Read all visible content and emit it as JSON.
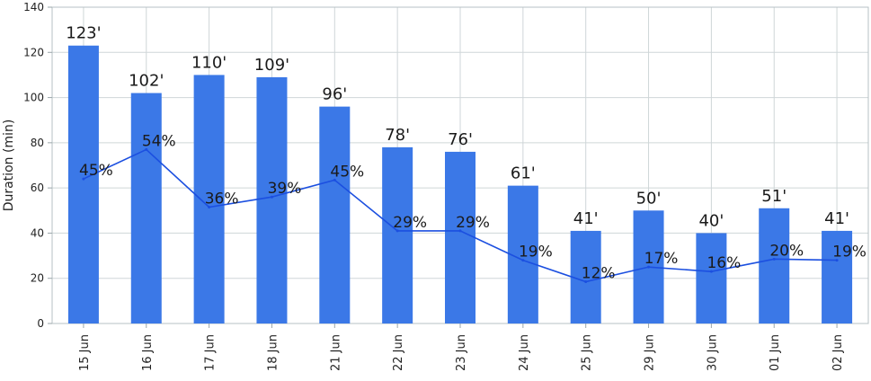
{
  "chart_data": {
    "type": "bar",
    "categories": [
      "15 Jun",
      "16 Jun",
      "17 Jun",
      "18 Jun",
      "21 Jun",
      "22 Jun",
      "23 Jun",
      "24 Jun",
      "25 Jun",
      "29 Jun",
      "30 Jun",
      "01 Jun",
      "02 Jun"
    ],
    "series": [
      {
        "type": "bar",
        "values": [
          123,
          102,
          110,
          109,
          96,
          78,
          76,
          61,
          41,
          50,
          40,
          51,
          41
        ],
        "labels": [
          "123'",
          "102'",
          "110'",
          "109'",
          "96'",
          "78'",
          "76'",
          "61'",
          "41'",
          "50'",
          "40'",
          "51'",
          "41'"
        ],
        "color": "#3b78e7"
      },
      {
        "type": "line",
        "values": [
          64,
          77,
          51.5,
          56,
          63.5,
          41,
          41,
          28,
          18.5,
          25,
          23,
          28.5,
          28
        ],
        "labels": [
          "45%",
          "54%",
          "36%",
          "39%",
          "45%",
          "29%",
          "29%",
          "19%",
          "12%",
          "17%",
          "16%",
          "20%",
          "19%"
        ],
        "color": "#1b4fe0"
      }
    ],
    "title": "",
    "xlabel": "",
    "ylabel": "Duration (min)",
    "ylim": [
      0,
      140
    ],
    "yticks": [
      "0",
      "20",
      "40",
      "60",
      "80",
      "100",
      "120",
      "140"
    ],
    "grid": true
  }
}
